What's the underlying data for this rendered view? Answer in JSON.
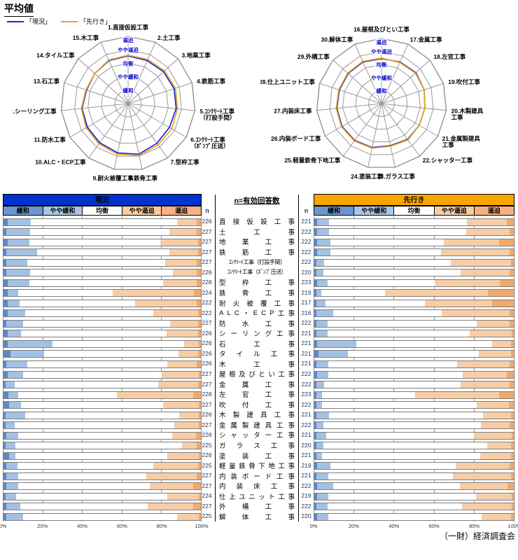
{
  "title": "平均値",
  "legend": {
    "current": "「現況」",
    "outlook": "「先行き」"
  },
  "footer": "（一財）経済調査会",
  "colors": {
    "current_line": "#2222CC",
    "outlook_line": "#E3A820",
    "current_header_bg": "#0033CC",
    "outlook_header_bg": "#F7A600",
    "header_cell_bg": [
      "#6D96CB",
      "#AAC6E6",
      "#FFFFFF",
      "#F8CDA6",
      "#F4B183"
    ],
    "segment_colors": [
      "#5E88C4",
      "#A2C1E4",
      "#FFFFFF",
      "#F8CDA6",
      "#F2A96B"
    ],
    "ring_label_color": "#0000CC",
    "n_text_color": "#1F3864",
    "grid_color": "#999999"
  },
  "bottom": {
    "col_headers": [
      "緩和",
      "やや緩和",
      "均衡",
      "やや逼迫",
      "逼迫"
    ],
    "n_header": "n",
    "n_title": "n=有効回答数",
    "axis_ticks": [
      "0%",
      "20%",
      "40%",
      "60%",
      "80%",
      "100%"
    ]
  },
  "trades": [
    "直接仮設工事",
    "土工事",
    "地業工事",
    "鉄筋工事",
    "ｺﾝｸﾘｰﾄ工事（打設手間）",
    "ｺﾝｸﾘｰﾄ工事（ﾎﾟﾝﾌﾟ圧送）",
    "型枠工事",
    "鉄骨工事",
    "耐火被覆工事",
    "ALC・ECP工事",
    "防水工事",
    "シーリング工事",
    "石工事",
    "タイル工事",
    "木工事",
    "屋根及びとい工事",
    "金属工事",
    "左官工事",
    "吹付工事",
    "木製建具工事",
    "金属製建具工事",
    "シャッター工事",
    "ガラス工事",
    "塗装工事",
    "軽量鉄骨下地工事",
    "内装ボード工事",
    "内装床工事",
    "仕上ユニット工事",
    "外構工事",
    "解体工事"
  ],
  "chart_data": [
    {
      "type": "radar",
      "name": "radar-current-left",
      "categories": [
        "1.直接仮設工事",
        "2.土工事",
        "3.地業工事",
        "4.鉄筋工事",
        "5.ｺﾝｸﾘｰﾄ工事\n（打設手間）",
        "6.ｺﾝｸﾘｰﾄ工事\n（ﾎﾟﾝﾌﾟ圧送）",
        "7.型枠工事",
        "8.鉄骨工事",
        "9.耐火被覆工事",
        "10.ALC・ECP工事",
        "11.防水工事",
        "12.シーリング工事",
        "13.石工事",
        "14.タイル工事",
        "15.木工事"
      ],
      "ring_labels": [
        "逼迫",
        "やや逼迫",
        "均衡",
        "やや緩和",
        "緩和"
      ],
      "scale": {
        "min": 0,
        "max": 5
      },
      "series": [
        {
          "name": "現況",
          "values": [
            3.55,
            3.5,
            3.55,
            3.6,
            3.6,
            3.55,
            3.65,
            3.85,
            3.75,
            3.6,
            3.5,
            3.45,
            3.25,
            3.35,
            3.5
          ]
        },
        {
          "name": "先行き",
          "values": [
            3.6,
            3.6,
            3.65,
            3.7,
            3.7,
            3.75,
            3.8,
            3.95,
            3.85,
            3.7,
            3.6,
            3.5,
            3.3,
            3.35,
            3.55
          ]
        }
      ]
    },
    {
      "type": "radar",
      "name": "radar-right",
      "categories": [
        "16.屋根及びとい工事",
        "17.金属工事",
        "18.左官工事",
        "19.吹付工事",
        "20.木製建具\n工事",
        "21.金属製建具\n工事",
        "22.シャッター工事",
        "23.ガラス工事",
        "24.塗装工事",
        "25.軽量鉄骨下地工事",
        "26.内装ボード工事",
        "27.内装床工事",
        "28.仕上ユニット工事",
        "29.外構工事",
        "30.解体工事"
      ],
      "ring_labels": [
        "逼迫",
        "やや逼迫",
        "均衡",
        "やや緩和",
        "緩和"
      ],
      "scale": {
        "min": 0,
        "max": 5
      },
      "series": [
        {
          "name": "現況",
          "values": [
            3.45,
            3.5,
            3.55,
            3.45,
            3.35,
            3.35,
            3.4,
            3.3,
            3.45,
            3.5,
            3.5,
            3.45,
            3.4,
            3.45,
            3.5
          ]
        },
        {
          "name": "先行き",
          "values": [
            3.5,
            3.45,
            3.5,
            3.45,
            3.35,
            3.35,
            3.45,
            3.35,
            3.5,
            3.55,
            3.55,
            3.5,
            3.45,
            3.5,
            3.55
          ]
        }
      ]
    },
    {
      "type": "bar",
      "name": "stacked-current",
      "title": "現況",
      "stacked": true,
      "orientation": "horizontal",
      "xlim": [
        0,
        100
      ],
      "segments": [
        "緩和",
        "やや緩和",
        "均衡",
        "やや逼迫",
        "逼迫"
      ],
      "n": [
        226,
        227,
        227,
        227,
        227,
        226,
        228,
        224,
        222,
        222,
        227,
        226,
        226,
        226,
        226,
        227,
        227,
        228,
        227,
        226,
        227,
        226,
        225,
        226,
        225,
        227,
        227,
        224,
        227,
        225
      ],
      "values": [
        [
          2,
          12,
          74,
          10,
          2
        ],
        [
          1.5,
          12,
          70.5,
          14,
          2
        ],
        [
          2,
          11,
          66.5,
          19,
          1.5
        ],
        [
          1.5,
          15.5,
          67,
          14.5,
          1.5
        ],
        [
          1.5,
          10.5,
          70,
          16,
          2
        ],
        [
          1.5,
          12,
          72.5,
          12,
          2
        ],
        [
          2,
          11,
          68,
          17,
          2
        ],
        [
          2,
          5.5,
          48,
          41,
          3.5
        ],
        [
          2,
          6,
          58.5,
          31.5,
          2
        ],
        [
          2,
          9,
          65,
          22.5,
          1.5
        ],
        [
          1.5,
          8.5,
          74.5,
          14,
          1.5
        ],
        [
          2,
          7,
          73.5,
          16,
          1.5
        ],
        [
          2,
          23,
          66.5,
          7.5,
          1
        ],
        [
          3.5,
          17,
          68,
          10,
          1.5
        ],
        [
          1.5,
          10.5,
          71,
          15,
          2
        ],
        [
          2,
          8,
          70,
          19,
          1
        ],
        [
          1,
          4.5,
          73,
          20,
          1.5
        ],
        [
          2.5,
          5,
          50,
          38.5,
          4
        ],
        [
          3,
          6,
          72,
          18,
          1
        ],
        [
          1,
          10,
          78,
          10,
          1
        ],
        [
          1,
          4.5,
          81,
          12.5,
          1
        ],
        [
          1.5,
          6,
          78,
          12,
          2.5
        ],
        [
          1,
          5,
          84.5,
          7.5,
          2
        ],
        [
          3,
          3,
          77,
          16,
          1
        ],
        [
          1.5,
          5.5,
          69,
          22.5,
          1.5
        ],
        [
          1.5,
          6,
          65,
          25.5,
          2
        ],
        [
          1.5,
          6,
          66.5,
          22,
          4
        ],
        [
          1,
          5.5,
          76.5,
          16,
          1
        ],
        [
          1.5,
          7,
          64.5,
          23,
          4
        ],
        [
          1.5,
          8.5,
          78,
          11,
          1
        ]
      ]
    },
    {
      "type": "bar",
      "name": "stacked-outlook",
      "title": "先行き",
      "stacked": true,
      "orientation": "horizontal",
      "xlim": [
        0,
        100
      ],
      "segments": [
        "緩和",
        "やや緩和",
        "均衡",
        "やや逼迫",
        "逼迫"
      ],
      "n": [
        221,
        222,
        222,
        222,
        222,
        220,
        223,
        219,
        217,
        216,
        222,
        221,
        221,
        221,
        221,
        222,
        222,
        223,
        222,
        221,
        222,
        221,
        220,
        221,
        219,
        221,
        222,
        219,
        222,
        220
      ],
      "values": [
        [
          1.5,
          6,
          69,
          20,
          3.5
        ],
        [
          1.5,
          6,
          68.5,
          22,
          2
        ],
        [
          1.5,
          6.5,
          57,
          27.5,
          7.5
        ],
        [
          1.5,
          6.5,
          55.5,
          34.5,
          2
        ],
        [
          1,
          4,
          63.5,
          30,
          1.5
        ],
        [
          1,
          3.5,
          69,
          24.5,
          2
        ],
        [
          1.5,
          5,
          54,
          32.5,
          7
        ],
        [
          1,
          2.5,
          32,
          51.5,
          13
        ],
        [
          1,
          4.5,
          50,
          33.5,
          11
        ],
        [
          1,
          8.5,
          54.5,
          34,
          2
        ],
        [
          1,
          5.5,
          75,
          16.5,
          2
        ],
        [
          1,
          5.5,
          71.5,
          21,
          1
        ],
        [
          1.5,
          19.5,
          68,
          9.5,
          1.5
        ],
        [
          2,
          15,
          65.5,
          16,
          1.5
        ],
        [
          1,
          6,
          64.5,
          26.5,
          2
        ],
        [
          1.5,
          5.5,
          67.5,
          22,
          3.5
        ],
        [
          1,
          4,
          68.5,
          24.5,
          2
        ],
        [
          1,
          3,
          46.5,
          42,
          7.5
        ],
        [
          1,
          3,
          77.5,
          16,
          2.5
        ],
        [
          1,
          6.5,
          77,
          14,
          1.5
        ],
        [
          1,
          3.5,
          79,
          14.5,
          2
        ],
        [
          1,
          5,
          74,
          19,
          1
        ],
        [
          1,
          3.5,
          82,
          12,
          1.5
        ],
        [
          1,
          3,
          79,
          15.5,
          1.5
        ],
        [
          1.5,
          6.5,
          63,
          27,
          2
        ],
        [
          1,
          6,
          62.5,
          29,
          1.5
        ],
        [
          1.5,
          8,
          63.5,
          24,
          3
        ],
        [
          1.5,
          5.5,
          74,
          18,
          1
        ],
        [
          1,
          5.5,
          67.5,
          25,
          1
        ],
        [
          1.5,
          5.5,
          77,
          14.5,
          1.5
        ]
      ]
    }
  ]
}
